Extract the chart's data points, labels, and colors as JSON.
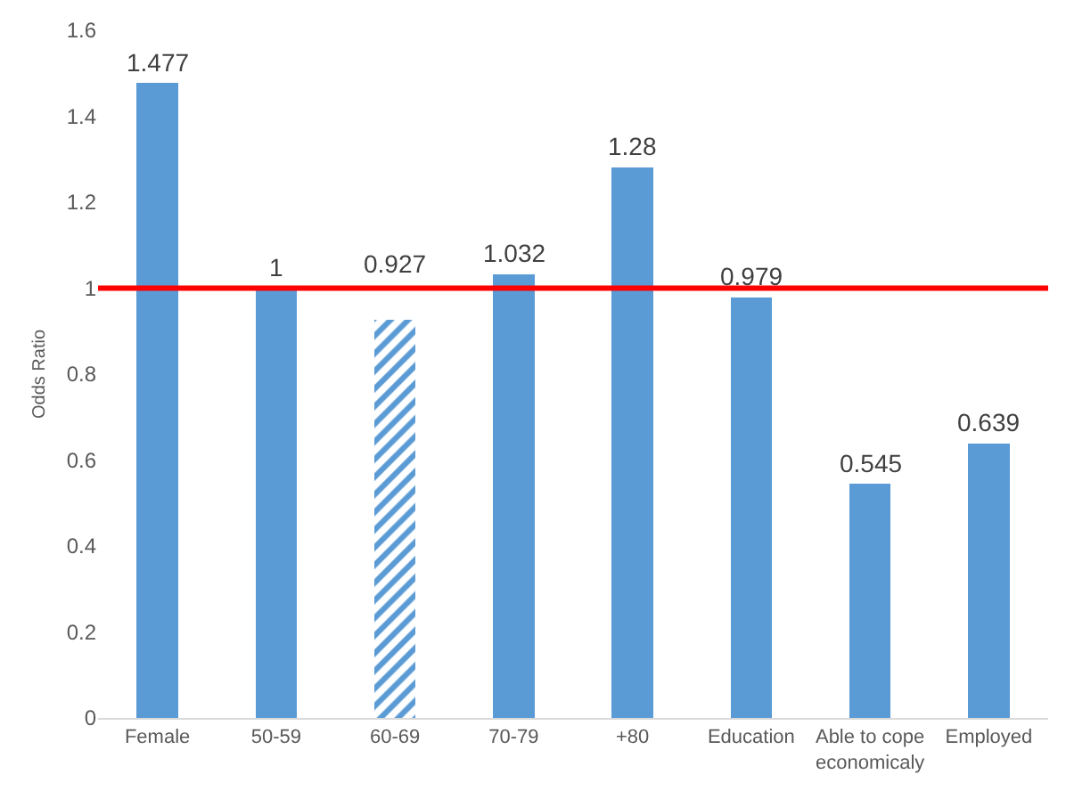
{
  "chart_data": {
    "type": "bar",
    "ylabel": "Odds Ratio",
    "categories": [
      "Female",
      "50-59",
      "60-69",
      "70-79",
      "+80",
      "Education",
      "Able to cope economicaly",
      "Employed"
    ],
    "series": [
      {
        "color": "#5b9bd5",
        "values": [
          1.477,
          1,
          null,
          1.032,
          1.28,
          0.979,
          0.545,
          0.639
        ]
      },
      {
        "color": "#5b9bd5",
        "values": [
          null,
          null,
          0.927,
          null,
          null,
          null,
          null,
          null
        ]
      }
    ],
    "stacked": true,
    "data_labels": true,
    "ylim": [
      0,
      1.6
    ],
    "yticks": [
      0,
      0.2,
      0.4,
      0.6,
      0.8,
      1,
      1.2,
      1.4,
      1.6
    ],
    "grid": false,
    "ref_lines": [
      {
        "axis": "y",
        "value": 1,
        "color": "#ff0000"
      }
    ]
  }
}
